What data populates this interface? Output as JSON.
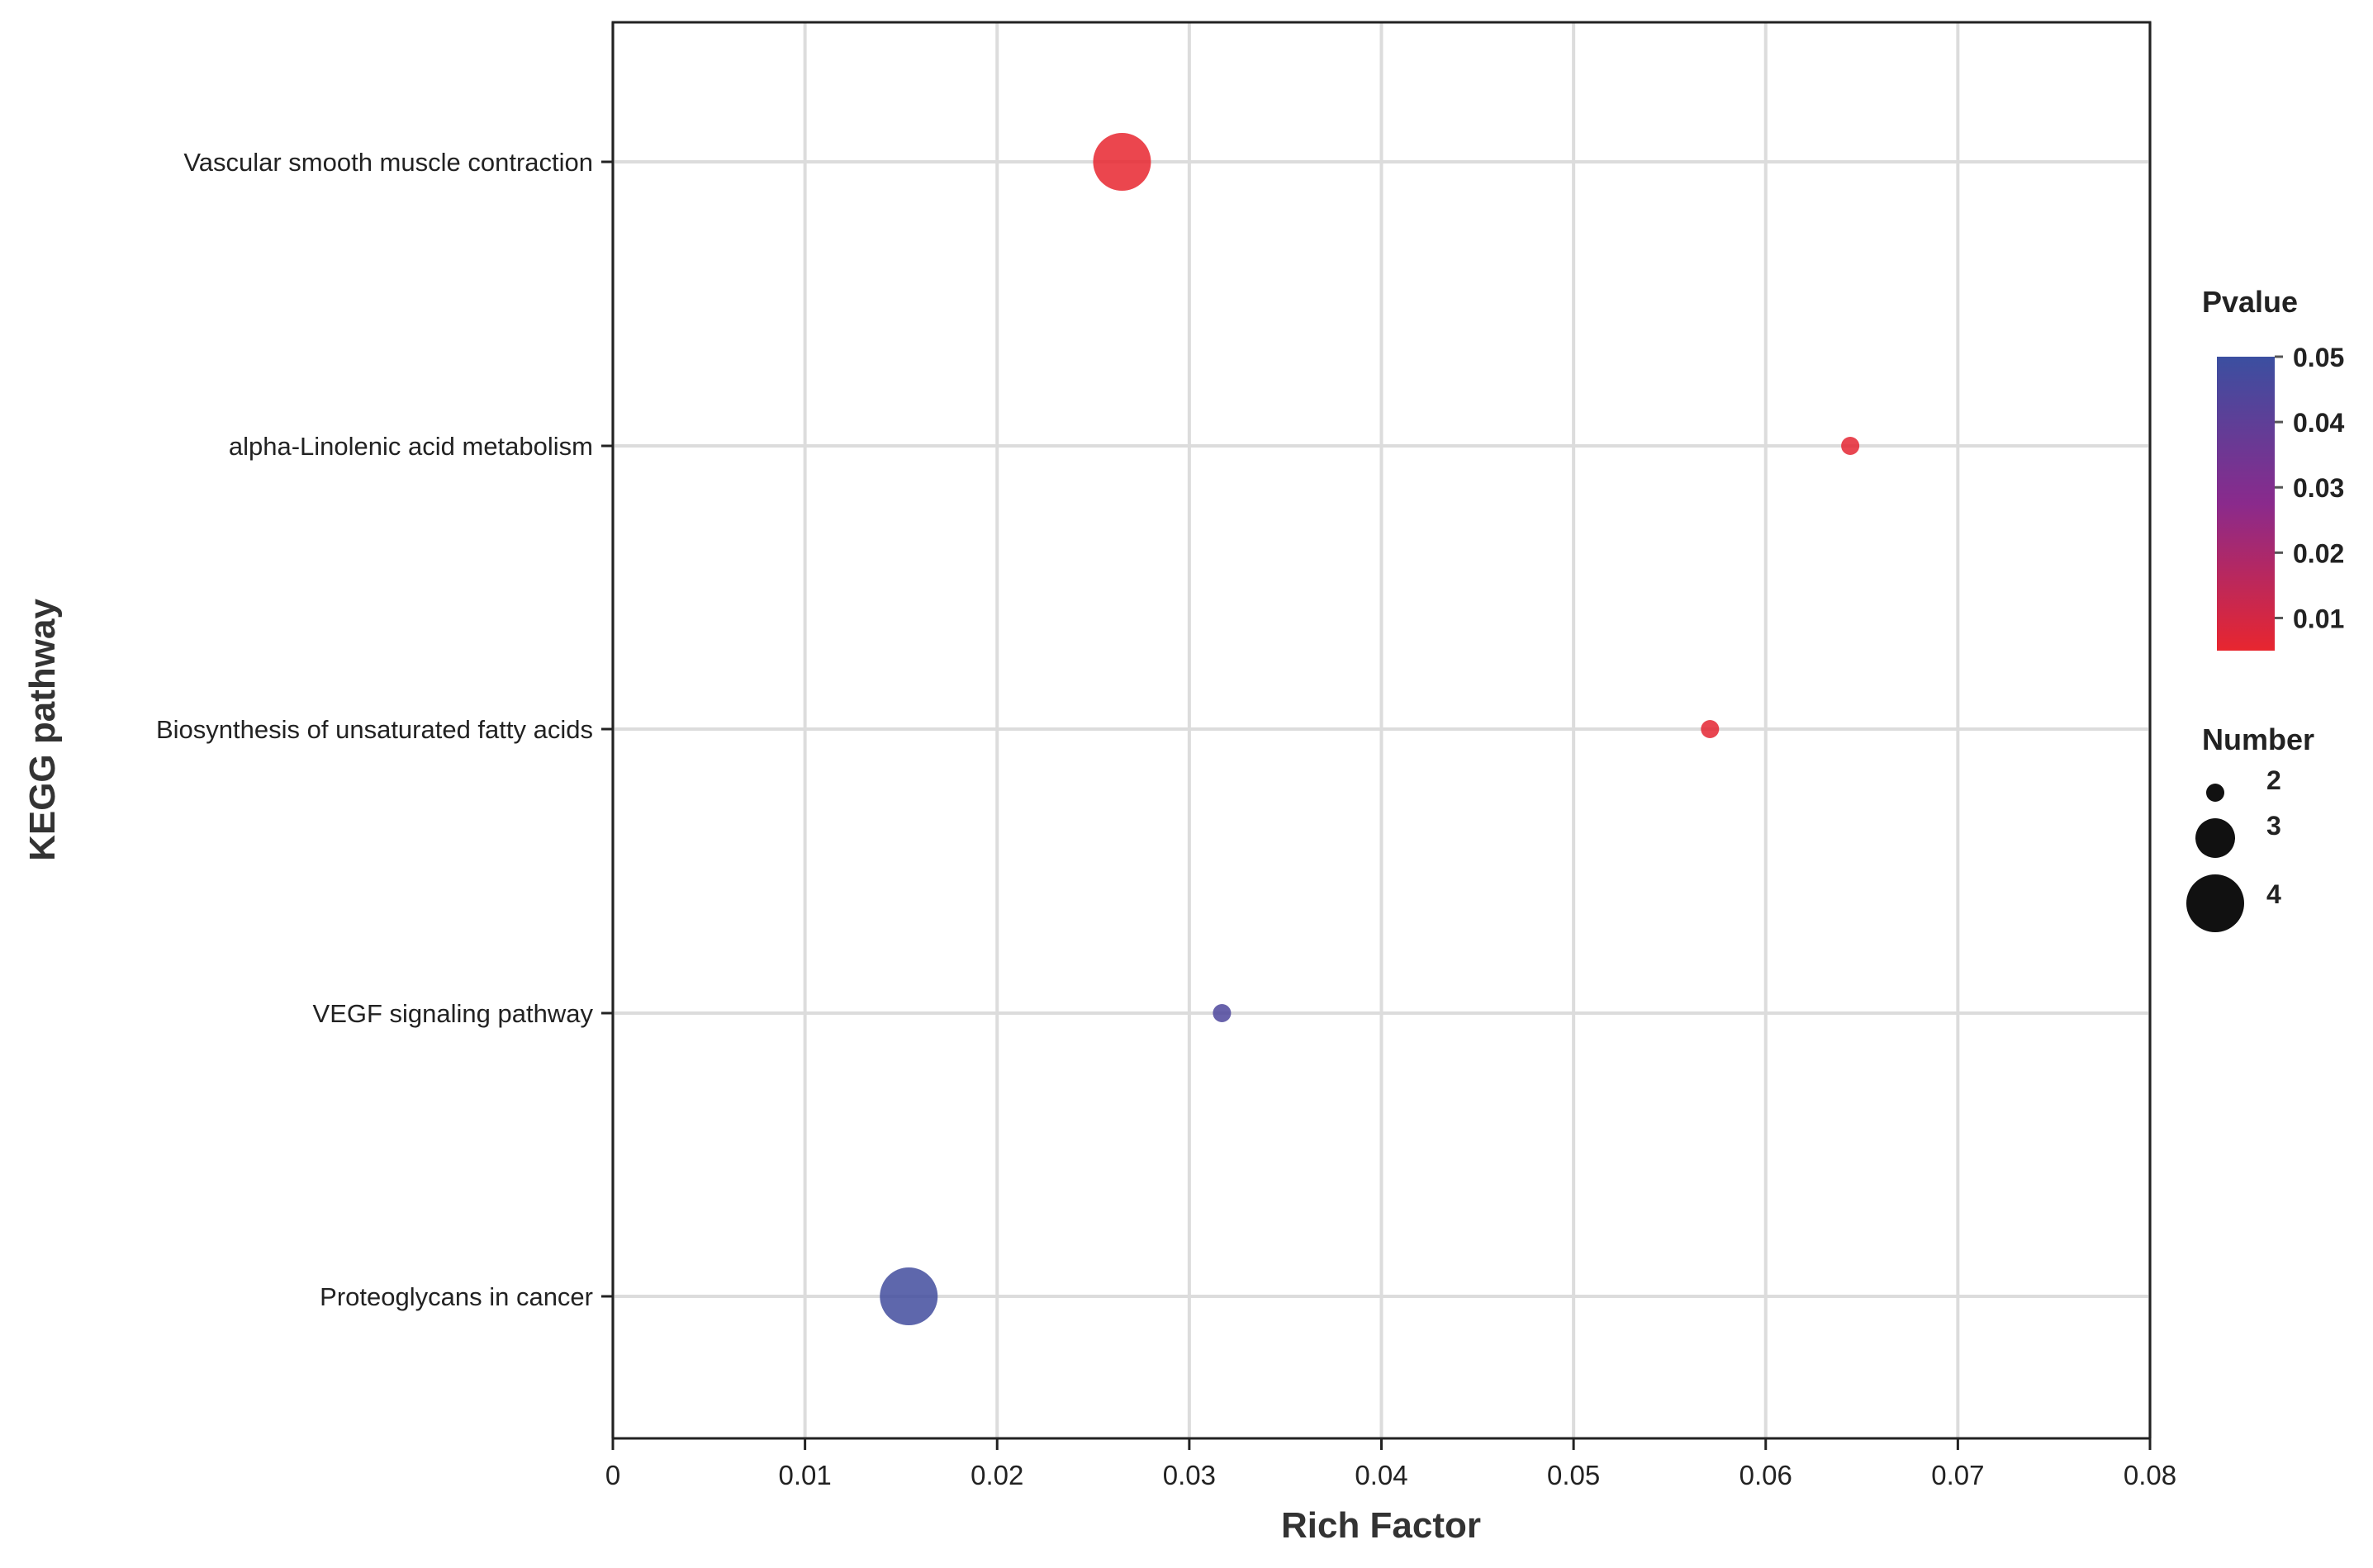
{
  "chart_data": {
    "type": "scatter",
    "xlabel": "Rich Factor",
    "ylabel": "KEGG pathway",
    "xlim": [
      0,
      0.08
    ],
    "xticks": [
      "0",
      "0.01",
      "0.02",
      "0.03",
      "0.04",
      "0.05",
      "0.06",
      "0.07",
      "0.08"
    ],
    "grid": true,
    "categories": [
      "Vascular smooth muscle contraction",
      "alpha-Linolenic acid metabolism",
      "Biosynthesis of unsaturated fatty acids",
      "VEGF signaling pathway",
      "Proteoglycans in cancer"
    ],
    "points": [
      {
        "pathway": "Vascular smooth muscle contraction",
        "rich_factor": 0.0265,
        "number": 4,
        "pvalue": 0.005
      },
      {
        "pathway": "alpha-Linolenic acid metabolism",
        "rich_factor": 0.0644,
        "number": 2,
        "pvalue": 0.006
      },
      {
        "pathway": "Biosynthesis of unsaturated fatty acids",
        "rich_factor": 0.0571,
        "number": 2,
        "pvalue": 0.006
      },
      {
        "pathway": "VEGF signaling pathway",
        "rich_factor": 0.0317,
        "number": 2,
        "pvalue": 0.045
      },
      {
        "pathway": "Proteoglycans in cancer",
        "rich_factor": 0.0154,
        "number": 4,
        "pvalue": 0.048
      }
    ],
    "color_legend": {
      "title": "Pvalue",
      "range": [
        0.005,
        0.05
      ],
      "ticks": [
        "0.05",
        "0.04",
        "0.03",
        "0.02",
        "0.01"
      ],
      "low_color": "#e8262f",
      "high_color": "#3b4fa0",
      "mid_color": "#8a2a8c"
    },
    "size_legend": {
      "title": "Number",
      "values": [
        "2",
        "3",
        "4"
      ]
    },
    "legend_placement": "right"
  }
}
